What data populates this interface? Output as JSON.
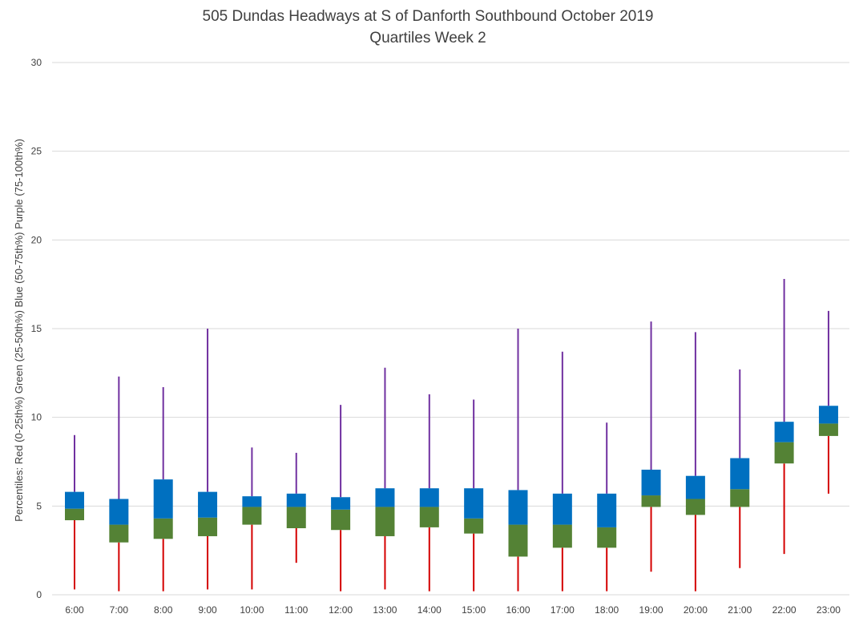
{
  "chart_data": {
    "type": "boxplot",
    "title_line1": "505 Dundas Headways at S of Danforth Southbound October 2019",
    "title_line2": "Quartiles Week 2",
    "ylabel": "Percentiles:  Red (0-25th%)  Green (25-50th%)  Blue (50-75th%)  Purple (75-100th%)",
    "xlabel": "",
    "ylim": [
      0,
      30
    ],
    "yticks": [
      "0",
      "5",
      "10",
      "15",
      "20",
      "25",
      "30"
    ],
    "grid": true,
    "colors": {
      "min_q1": "#d40000",
      "q1_median": "#548235",
      "median_q3": "#0070c0",
      "q3_max": "#7030a0",
      "grid": "#d9d9d9"
    },
    "categories": [
      "6:00",
      "7:00",
      "8:00",
      "9:00",
      "10:00",
      "11:00",
      "12:00",
      "13:00",
      "14:00",
      "15:00",
      "16:00",
      "17:00",
      "18:00",
      "19:00",
      "20:00",
      "21:00",
      "22:00",
      "23:00"
    ],
    "min": [
      0.3,
      0.2,
      0.2,
      0.3,
      0.3,
      1.8,
      0.2,
      0.3,
      0.2,
      0.2,
      0.2,
      0.2,
      0.2,
      1.3,
      0.2,
      1.5,
      2.3,
      5.7
    ],
    "q1": [
      4.2,
      2.95,
      3.15,
      3.3,
      3.95,
      3.75,
      3.65,
      3.3,
      3.8,
      3.45,
      2.15,
      2.65,
      2.65,
      4.95,
      4.5,
      4.95,
      7.4,
      8.95
    ],
    "median": [
      4.85,
      3.95,
      4.3,
      4.35,
      4.95,
      4.95,
      4.8,
      4.95,
      4.95,
      4.3,
      3.95,
      3.95,
      3.8,
      5.6,
      5.4,
      5.95,
      8.6,
      9.65
    ],
    "q3": [
      5.8,
      5.4,
      6.5,
      5.8,
      5.55,
      5.7,
      5.5,
      6.0,
      6.0,
      6.0,
      5.9,
      5.7,
      5.7,
      7.05,
      6.7,
      7.7,
      9.75,
      10.65
    ],
    "max": [
      9.0,
      12.3,
      11.7,
      15.0,
      8.3,
      8.0,
      10.7,
      12.8,
      11.3,
      11.0,
      15.0,
      13.7,
      9.7,
      15.4,
      14.8,
      12.7,
      17.8,
      16.0
    ]
  }
}
